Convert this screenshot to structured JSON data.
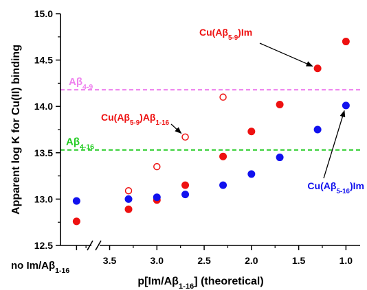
{
  "chart_data": {
    "type": "scatter",
    "title": "",
    "ylabel": {
      "main": "Apparent log K for Cu(II) binding"
    },
    "xlabel": {
      "pre": "p[Im/Aβ",
      "sub": "1-16",
      "post": "] (theoretical)"
    },
    "ylim": [
      12.5,
      15.0
    ],
    "xlim": [
      4.02,
      0.85
    ],
    "x_reversed": true,
    "yticks": [
      "12.5",
      "13.0",
      "13.5",
      "14.0",
      "14.5",
      "15.0"
    ],
    "xticks": [
      "3.5",
      "3.0",
      "2.5",
      "2.0",
      "1.5",
      "1.0"
    ],
    "xticks_values": [
      3.5,
      3.0,
      2.5,
      2.0,
      1.5,
      1.0
    ],
    "axis_break": true,
    "no_im_label": {
      "pre": "no Im/Aβ",
      "sub": "1-16"
    },
    "no_im_x_position": 3.85,
    "reference_lines": [
      {
        "label": {
          "main": "Aβ",
          "sub": "4-9"
        },
        "y": 14.18,
        "color": "#ee82ee"
      },
      {
        "label": {
          "main": "Aβ",
          "sub": "4-16"
        },
        "y": 13.53,
        "color": "#22cc22"
      }
    ],
    "series": [
      {
        "label": {
          "pre": "Cu(Aβ",
          "sub": "5-9",
          "post": ")Im"
        },
        "color": "#ee1111",
        "marker": "filled",
        "points": [
          {
            "x": "no Im",
            "y": 12.76
          },
          {
            "x": 3.3,
            "y": 12.89
          },
          {
            "x": 3.0,
            "y": 12.99
          },
          {
            "x": 2.7,
            "y": 13.15
          },
          {
            "x": 2.3,
            "y": 13.46
          },
          {
            "x": 2.0,
            "y": 13.73
          },
          {
            "x": 1.7,
            "y": 14.02
          },
          {
            "x": 1.3,
            "y": 14.41
          },
          {
            "x": 1.0,
            "y": 14.7
          }
        ]
      },
      {
        "label": {
          "pre": "Cu(Aβ",
          "sub": "5-16",
          "post": ")Im"
        },
        "color": "#1111ee",
        "marker": "filled",
        "points": [
          {
            "x": "no Im",
            "y": 12.98
          },
          {
            "x": 3.3,
            "y": 13.0
          },
          {
            "x": 3.0,
            "y": 13.02
          },
          {
            "x": 2.7,
            "y": 13.05
          },
          {
            "x": 2.3,
            "y": 13.15
          },
          {
            "x": 2.0,
            "y": 13.27
          },
          {
            "x": 1.7,
            "y": 13.45
          },
          {
            "x": 1.3,
            "y": 13.75
          },
          {
            "x": 1.0,
            "y": 14.01
          }
        ]
      },
      {
        "label": {
          "pre": "Cu(Aβ",
          "sub": "5-9",
          "post": ")Aβ",
          "sub2": "1-16"
        },
        "color": "#ee1111",
        "marker": "open",
        "points": [
          {
            "x": 3.3,
            "y": 13.09
          },
          {
            "x": 3.0,
            "y": 13.35
          },
          {
            "x": 2.7,
            "y": 13.67
          },
          {
            "x": 2.3,
            "y": 14.1
          }
        ]
      }
    ]
  }
}
